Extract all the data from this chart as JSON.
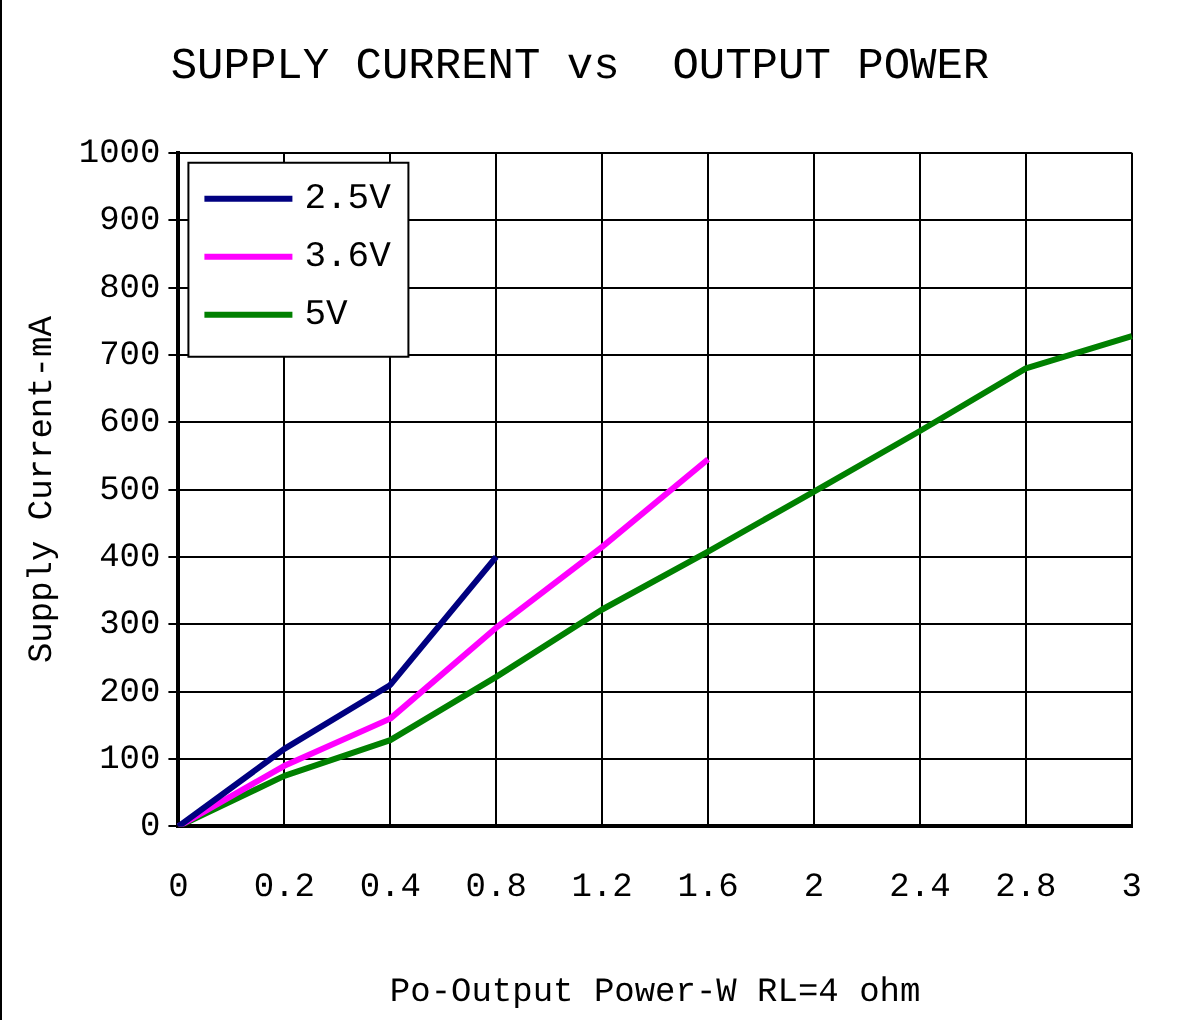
{
  "chart_data": {
    "type": "line",
    "title": "SUPPLY CURRENT vs  OUTPUT POWER",
    "xlabel": "Po-Output Power-W RL=4 ohm",
    "ylabel": "Supply Current-mA",
    "categories": [
      "0",
      "0.2",
      "0.4",
      "0.8",
      "1.2",
      "1.6",
      "2",
      "2.4",
      "2.8",
      "3"
    ],
    "series": [
      {
        "name": "2.5V",
        "color": "#000080",
        "values": [
          0,
          115,
          210,
          400,
          null,
          null,
          null,
          null,
          null,
          null
        ]
      },
      {
        "name": "3.6V",
        "color": "#ff00ff",
        "values": [
          0,
          90,
          160,
          295,
          415,
          545,
          null,
          null,
          null,
          null
        ]
      },
      {
        "name": "5V",
        "color": "#008000",
        "values": [
          0,
          75,
          128,
          222,
          322,
          408,
          497,
          587,
          680,
          728
        ]
      }
    ],
    "ylim": [
      0,
      1000
    ],
    "yticks": [
      0,
      100,
      200,
      300,
      400,
      500,
      600,
      700,
      800,
      900,
      1000
    ],
    "grid": true,
    "legend": "top left",
    "marker": "none",
    "line_style": "solid"
  }
}
